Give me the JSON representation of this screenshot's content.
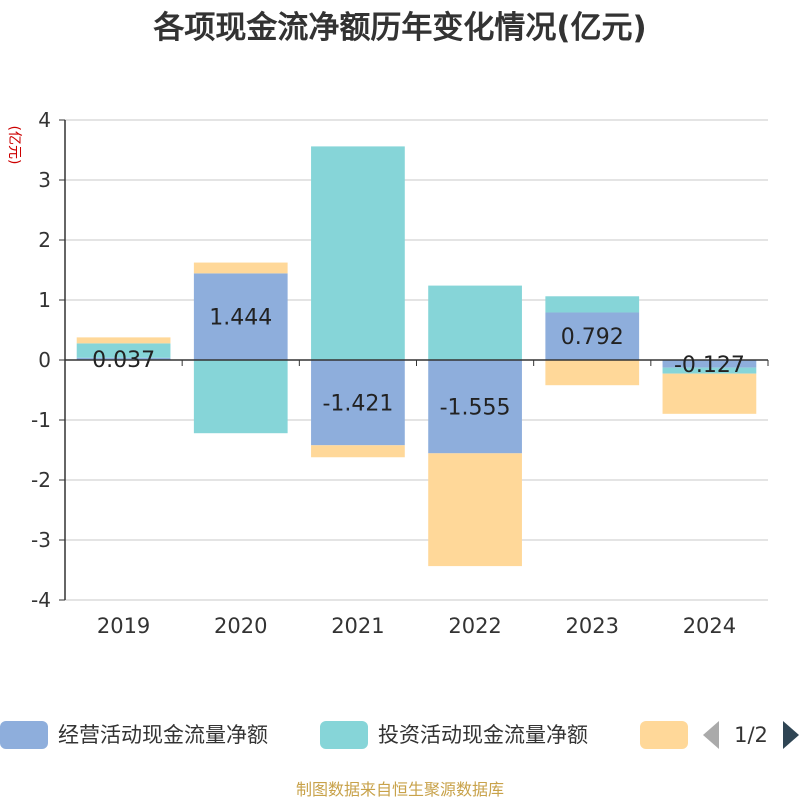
{
  "chart_data": {
    "type": "bar",
    "title": "各项现金流净额历年变化情况(亿元)",
    "ylabel": "(亿元)",
    "categories": [
      "2019",
      "2020",
      "2021",
      "2022",
      "2023",
      "2024"
    ],
    "ylim": [
      -4,
      4
    ],
    "yticks": [
      4,
      3,
      2,
      1,
      0,
      -1,
      -2,
      -3,
      -4
    ],
    "stacked": true,
    "series": [
      {
        "name": "经营活动现金流量净额",
        "color": "#8eaedc",
        "values": [
          0.037,
          1.444,
          -1.421,
          -1.555,
          0.792,
          -0.127
        ],
        "labels": [
          "0.037",
          "1.444",
          "-1.421",
          "-1.555",
          "0.792",
          "-0.127"
        ]
      },
      {
        "name": "投资活动现金流量净额",
        "color": "#86d5d8",
        "values": [
          0.24,
          -1.22,
          3.56,
          1.24,
          0.27,
          -0.1
        ]
      },
      {
        "name": "",
        "color": "#ffd899",
        "values": [
          0.1,
          0.18,
          -0.2,
          -1.88,
          -0.42,
          -0.67
        ]
      }
    ],
    "grid": true
  },
  "legend": {
    "page": "1/2",
    "prev_color": "#aaaaaa",
    "next_color": "#2f4554"
  },
  "source": "制图数据来自恒生聚源数据库"
}
